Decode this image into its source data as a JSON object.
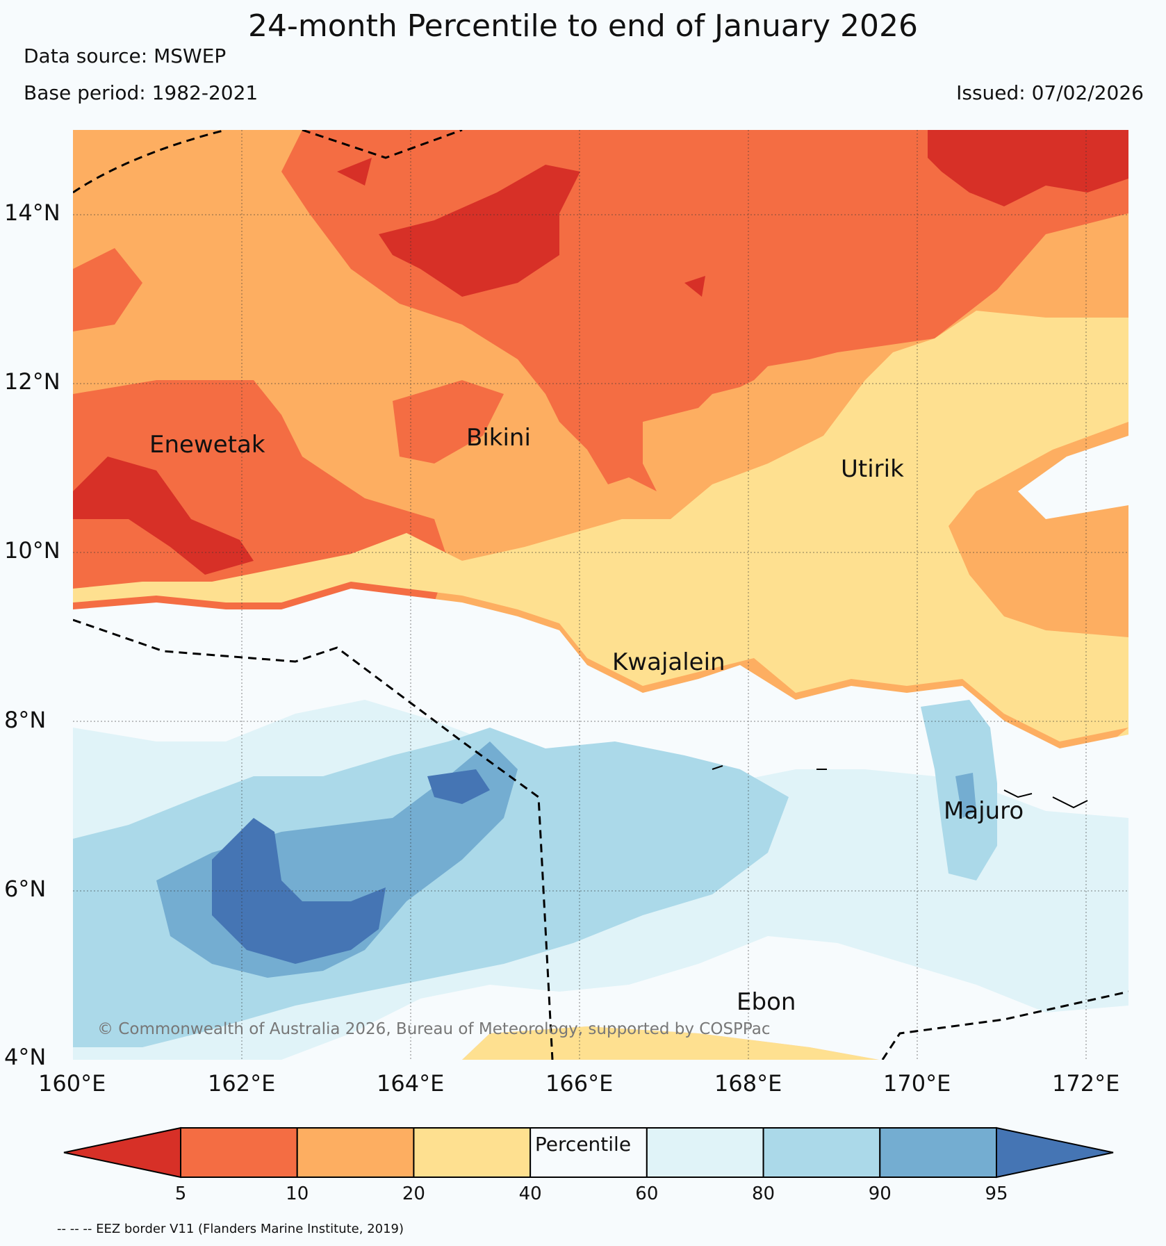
{
  "header": {
    "title": "24-month Percentile to end of January 2026",
    "data_source": "Data source: MSWEP",
    "base_period": "Base period: 1982-2021",
    "issued": "Issued: 07/02/2026"
  },
  "map": {
    "lon_range": [
      160,
      172.5
    ],
    "lat_range": [
      4,
      15
    ],
    "x_ticks": [
      "160°E",
      "162°E",
      "164°E",
      "166°E",
      "168°E",
      "170°E",
      "172°E"
    ],
    "y_ticks": [
      "4°N",
      "6°N",
      "8°N",
      "10°N",
      "12°N",
      "14°N"
    ],
    "places": [
      {
        "name": "Enewetak",
        "lon": 162.3,
        "lat": 11.3
      },
      {
        "name": "Bikini",
        "lon": 165.5,
        "lat": 11.4
      },
      {
        "name": "Utirik",
        "lon": 169.8,
        "lat": 11.1
      },
      {
        "name": "Kwajalein",
        "lon": 167.7,
        "lat": 8.8
      },
      {
        "name": "Majuro",
        "lon": 171.2,
        "lat": 7.1
      },
      {
        "name": "Ebon",
        "lon": 168.6,
        "lat": 4.7
      }
    ],
    "copyright": "© Commonwealth of Australia 2026, Bureau of Meteorology, supported by COSPPac"
  },
  "colorbar": {
    "colors": [
      "#d73027",
      "#f46d43",
      "#fdae61",
      "#fee090",
      "#f7fbfd",
      "#e0f3f8",
      "#abd9e9",
      "#74add1",
      "#4575b4"
    ],
    "tick_labels": [
      "5",
      "10",
      "20",
      "40",
      "60",
      "80",
      "90",
      "95"
    ],
    "label": "Percentile"
  },
  "footer": {
    "eez_note": "-- -- -- EEZ border V11 (Flanders Marine Institute, 2019)"
  }
}
